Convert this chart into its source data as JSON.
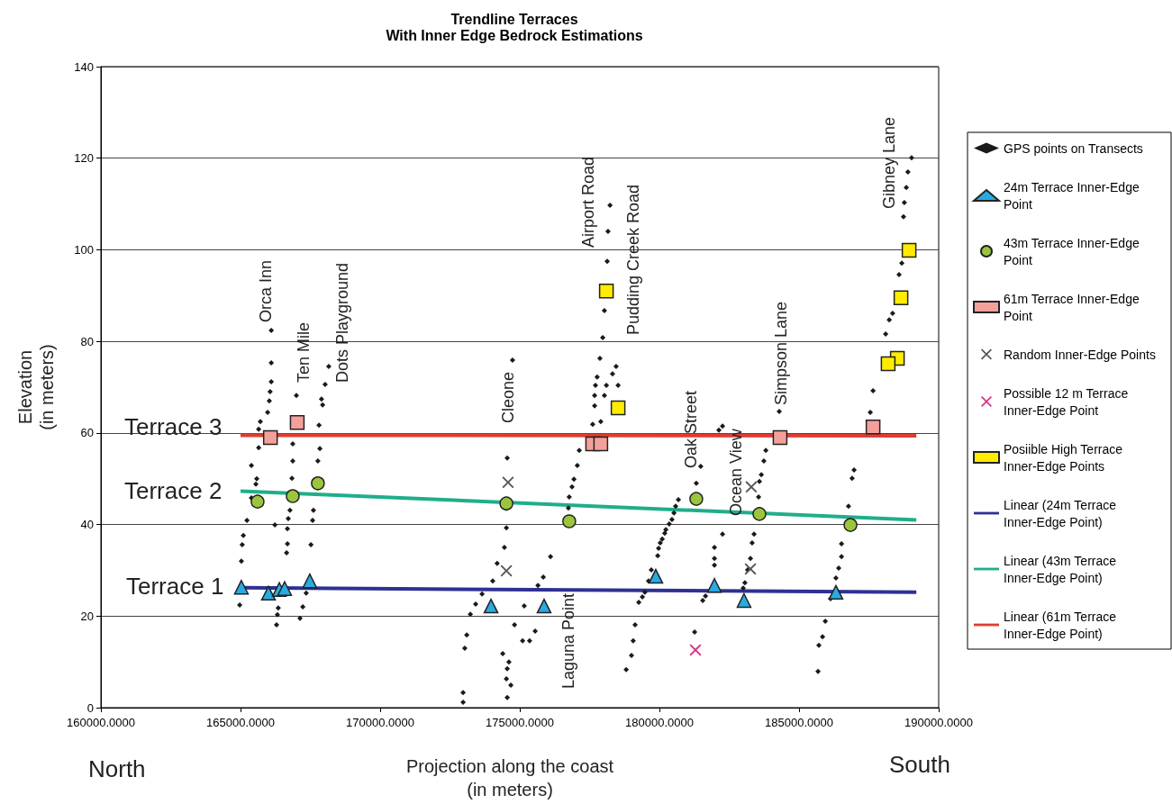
{
  "chart_data": {
    "type": "scatter",
    "title": "Trendline Terraces",
    "subtitle": "With Inner Edge Bedrock Estimations",
    "xlabel": "Projection along the coast\n(in meters)",
    "ylabel": "Elevation\n(in meters)",
    "xlim": [
      160000,
      190000
    ],
    "ylim": [
      0,
      140
    ],
    "xticks": [
      {
        "value": 160000,
        "label": "160000.0000"
      },
      {
        "value": 165000,
        "label": "165000.0000"
      },
      {
        "value": 170000,
        "label": "170000.0000"
      },
      {
        "value": 175000,
        "label": "175000.0000"
      },
      {
        "value": 180000,
        "label": "180000.0000"
      },
      {
        "value": 185000,
        "label": "185000.0000"
      },
      {
        "value": 190000,
        "label": "190000.0000"
      }
    ],
    "yticks": [
      0,
      20,
      40,
      60,
      80,
      100,
      120,
      140
    ],
    "grid": "y",
    "legend": "right",
    "series": [
      {
        "name": "GPS points on Transects",
        "color": "#1a1a1a",
        "marker": "diamond",
        "x": [
          166100,
          166100,
          166100,
          166060,
          166030,
          165970,
          165710,
          165650,
          165650,
          165390,
          165580,
          165550,
          165390,
          165230,
          165100,
          165060,
          165030,
          164970,
          166230,
          167000,
          166870,
          166870,
          166840,
          166770,
          166710,
          166680,
          166680,
          166650,
          166350,
          166320,
          166290,
          168160,
          168030,
          167900,
          167940,
          167810,
          167840,
          167770,
          167610,
          167580,
          167520,
          167350,
          167230,
          167130,
          174740,
          174550,
          174520,
          174520,
          174450,
          174190,
          174030,
          173650,
          173420,
          173230,
          173100,
          173030,
          172970,
          172970,
          174390,
          174610,
          174550,
          174520,
          174680,
          174550,
          174810,
          175160,
          175100,
          175350,
          175550,
          175650,
          175840,
          176100,
          178230,
          178160,
          178130,
          178030,
          177970,
          177870,
          177770,
          177710,
          177680,
          177680,
          177610,
          177130,
          177060,
          176940,
          176870,
          176770,
          176740,
          178450,
          178320,
          178520,
          178100,
          178030,
          177900,
          178810,
          179000,
          179060,
          179130,
          179260,
          179480,
          179610,
          179970,
          180100,
          180230,
          180450,
          180580,
          180680,
          180520,
          180350,
          180190,
          180030,
          179940,
          179710,
          179390,
          181480,
          181320,
          182260,
          182130,
          182260,
          181970,
          181970,
          181970,
          181550,
          181650,
          181260,
          184290,
          183810,
          183740,
          183650,
          183580,
          183550,
          183390,
          183320,
          183260,
          183160,
          183060,
          183000,
          189030,
          188900,
          188840,
          188770,
          188740,
          188680,
          188580,
          188350,
          188230,
          188100,
          187650,
          187550,
          186970,
          186900,
          186770,
          186520,
          186520,
          186420,
          186320,
          186130,
          185940,
          185840,
          185710,
          185680
        ],
        "values": [
          82.4,
          75.3,
          71.2,
          69,
          67,
          64.5,
          62.5,
          60.8,
          56.8,
          52.9,
          50,
          48.8,
          45.8,
          40.9,
          37.6,
          35.6,
          32,
          22.4,
          39.9,
          68.2,
          57.6,
          53.9,
          50.1,
          43.1,
          41.3,
          39.1,
          35.8,
          33.8,
          21.8,
          20.3,
          18.1,
          74.5,
          70.6,
          67.4,
          66.1,
          61.7,
          56.6,
          53.9,
          43.1,
          40.9,
          35.6,
          25,
          22,
          19.5,
          75.9,
          54.5,
          43.5,
          39.3,
          35,
          31.5,
          27.7,
          24.8,
          22.6,
          20.4,
          15.9,
          13,
          3.3,
          1.2,
          11.8,
          10,
          8.5,
          6.3,
          4.9,
          2.2,
          18.1,
          22.2,
          14.6,
          14.6,
          16.7,
          26.7,
          28.5,
          33,
          109.7,
          104,
          97.5,
          86.7,
          80.8,
          76.3,
          72.2,
          70.4,
          68.2,
          65.9,
          61.9,
          56.2,
          52.9,
          49.9,
          48.2,
          46,
          43.6,
          74.5,
          72.9,
          70.4,
          70.4,
          68.2,
          62.5,
          8.3,
          11.4,
          14.6,
          18.1,
          23,
          25.2,
          27.7,
          34.8,
          36.8,
          38.9,
          41.1,
          44,
          45.4,
          42.5,
          40.1,
          38.1,
          36,
          33.2,
          30.1,
          24.2,
          52.7,
          49,
          61.5,
          60.6,
          37.9,
          35,
          32.6,
          31.1,
          23.4,
          24.4,
          16.5,
          64.7,
          56.2,
          53.9,
          50.9,
          49.4,
          46,
          37.9,
          36,
          32.6,
          30.1,
          27.3,
          26.1,
          120.1,
          117,
          113.6,
          110.3,
          107.2,
          97.1,
          94.6,
          86.1,
          84.7,
          81.6,
          69.2,
          64.5,
          51.9,
          50.1,
          44,
          35.8,
          33,
          30.5,
          28.3,
          23.8,
          18.9,
          15.5,
          13.6,
          7.9
        ]
      },
      {
        "name": "24m Terrace Inner-Edge Point",
        "color": "#29abe2",
        "marker": "triangle",
        "x": [
          165030,
          166000,
          166390,
          166580,
          167480,
          173970,
          175870,
          179870,
          181970,
          183030,
          186320
        ],
        "values": [
          26.3,
          25,
          25.8,
          26,
          27.7,
          22.2,
          22.2,
          28.7,
          26.7,
          23.4,
          25.2
        ]
      },
      {
        "name": "43m Terrace Inner-Edge Point",
        "color": "#9bc53d",
        "marker": "circle",
        "x": [
          165610,
          166870,
          167770,
          174520,
          176770,
          181320,
          183580,
          186840
        ],
        "values": [
          45,
          46.2,
          49,
          44.6,
          40.7,
          45.6,
          42.3,
          39.9
        ]
      },
      {
        "name": "61m Terrace Inner-Edge Point",
        "color": "#f4a09a",
        "marker": "square",
        "x": [
          166070,
          167030,
          177610,
          177900,
          184320,
          187650
        ],
        "values": [
          59,
          62.3,
          57.6,
          57.6,
          59,
          61.3
        ]
      },
      {
        "name": "Random Inner-Edge Points",
        "color": "#555555",
        "marker": "cross",
        "x": [
          174580,
          174520,
          183290,
          183260
        ],
        "values": [
          49.2,
          29.9,
          48.2,
          30.3
        ]
      },
      {
        "name": "Possible 12 m Terrace Inner-Edge Point",
        "color": "#d6338a",
        "marker": "cross",
        "x": [
          181290
        ],
        "values": [
          12.6
        ]
      },
      {
        "name": "Posiible High Terrace Inner-Edge Points",
        "color": "#ffec00",
        "marker": "square",
        "x": [
          178100,
          178520,
          188940,
          188650,
          188520,
          188190
        ],
        "values": [
          91,
          65.5,
          99.9,
          89.5,
          76.3,
          75.1
        ]
      },
      {
        "name": "Linear (24m Terrace Inner-Edge Point)",
        "color": "#2e3192",
        "type": "line",
        "marker": "none",
        "x": [
          165000,
          189200
        ],
        "values": [
          26.2,
          25.2
        ]
      },
      {
        "name": "Linear (43m Terrace Inner-Edge Point)",
        "color": "#1fae8a",
        "type": "line",
        "marker": "none",
        "x": [
          165000,
          189200
        ],
        "values": [
          47.3,
          41
        ]
      },
      {
        "name": "Linear (61m Terrace Inner-Edge Point)",
        "color": "#e03c31",
        "type": "line",
        "marker": "none",
        "x": [
          165000,
          189200
        ],
        "values": [
          59.5,
          59.4
        ]
      }
    ],
    "annotations": [
      "Terrace 3",
      "Terrace 2",
      "Terrace 1",
      "North",
      "South",
      "Orca Inn",
      "Ten Mile",
      "Dots Playground",
      "Cleone",
      "Airport Road",
      "Pudding Creek Road",
      "Laguna Point",
      "Oak Street",
      "Ocean View",
      "Simpson Lane",
      "Gibney Lane"
    ]
  }
}
